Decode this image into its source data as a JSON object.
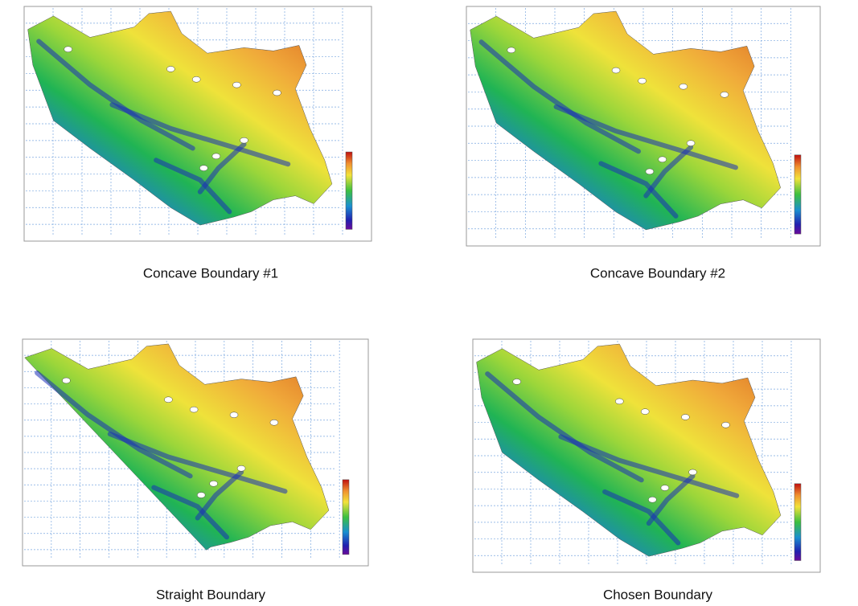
{
  "panels": [
    {
      "caption": "Concave Boundary #1"
    },
    {
      "caption": "Concave Boundary #2"
    },
    {
      "caption": "Straight Boundary"
    },
    {
      "caption": "Chosen Boundary"
    }
  ]
}
